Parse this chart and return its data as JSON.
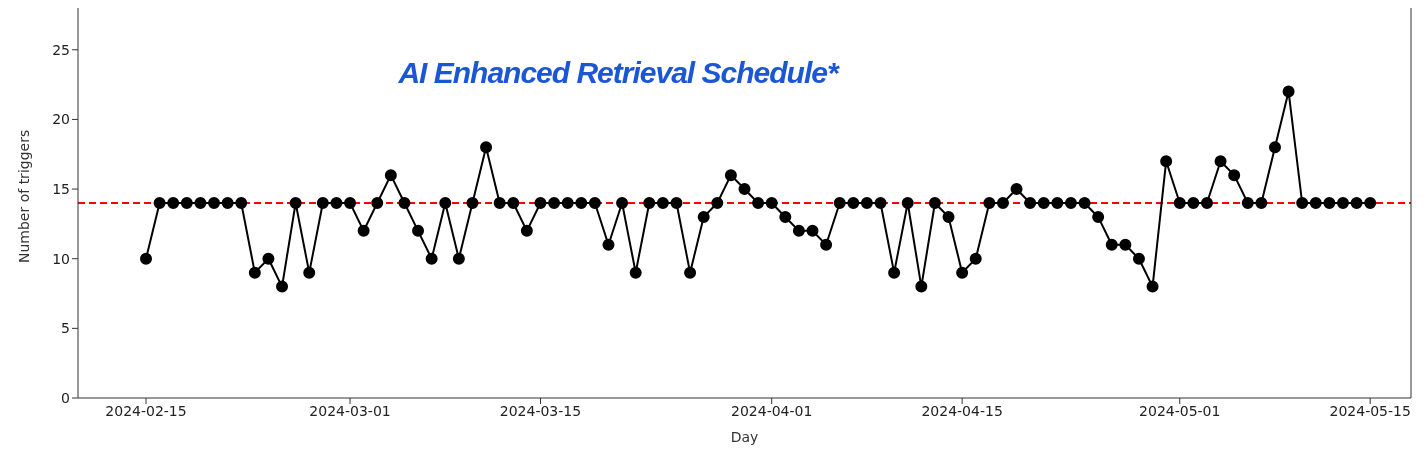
{
  "chart_data": {
    "type": "line",
    "xlabel": "Day",
    "ylabel": "Number of triggers",
    "annotations": [
      "AI Enhanced Retrieval Schedule*"
    ],
    "x": [
      "2024-02-15",
      "2024-02-16",
      "2024-02-17",
      "2024-02-18",
      "2024-02-19",
      "2024-02-20",
      "2024-02-21",
      "2024-02-22",
      "2024-02-23",
      "2024-02-24",
      "2024-02-25",
      "2024-02-26",
      "2024-02-27",
      "2024-02-28",
      "2024-02-29",
      "2024-03-01",
      "2024-03-02",
      "2024-03-03",
      "2024-03-04",
      "2024-03-05",
      "2024-03-06",
      "2024-03-07",
      "2024-03-08",
      "2024-03-09",
      "2024-03-10",
      "2024-03-11",
      "2024-03-12",
      "2024-03-13",
      "2024-03-14",
      "2024-03-15",
      "2024-03-16",
      "2024-03-17",
      "2024-03-18",
      "2024-03-19",
      "2024-03-20",
      "2024-03-21",
      "2024-03-22",
      "2024-03-23",
      "2024-03-24",
      "2024-03-25",
      "2024-03-26",
      "2024-03-27",
      "2024-03-28",
      "2024-03-29",
      "2024-03-30",
      "2024-03-31",
      "2024-04-01",
      "2024-04-02",
      "2024-04-03",
      "2024-04-04",
      "2024-04-05",
      "2024-04-06",
      "2024-04-07",
      "2024-04-08",
      "2024-04-09",
      "2024-04-10",
      "2024-04-11",
      "2024-04-12",
      "2024-04-13",
      "2024-04-14",
      "2024-04-15",
      "2024-04-16",
      "2024-04-17",
      "2024-04-18",
      "2024-04-19",
      "2024-04-20",
      "2024-04-21",
      "2024-04-22",
      "2024-04-23",
      "2024-04-24",
      "2024-04-25",
      "2024-04-26",
      "2024-04-27",
      "2024-04-28",
      "2024-04-29",
      "2024-04-30",
      "2024-05-01",
      "2024-05-02",
      "2024-05-03",
      "2024-05-04",
      "2024-05-05",
      "2024-05-06",
      "2024-05-07",
      "2024-05-08",
      "2024-05-09",
      "2024-05-10",
      "2024-05-11",
      "2024-05-12",
      "2024-05-13",
      "2024-05-14",
      "2024-05-15"
    ],
    "series": [
      {
        "color": "#000000",
        "values": [
          10,
          14,
          14,
          14,
          14,
          14,
          14,
          14,
          9,
          10,
          8,
          14,
          9,
          14,
          14,
          14,
          12,
          14,
          16,
          14,
          12,
          10,
          14,
          10,
          14,
          18,
          14,
          14,
          12,
          14,
          14,
          14,
          14,
          14,
          11,
          14,
          9,
          14,
          14,
          14,
          9,
          13,
          14,
          16,
          15,
          14,
          14,
          13,
          12,
          12,
          11,
          14,
          14,
          14,
          14,
          9,
          14,
          8,
          14,
          13,
          9,
          10,
          14,
          14,
          15,
          14,
          14,
          14,
          14,
          14,
          13,
          11,
          11,
          10,
          8,
          17,
          14,
          14,
          14,
          17,
          16,
          14,
          14,
          18,
          22,
          14,
          14,
          14,
          14,
          14,
          14
        ]
      }
    ],
    "xlim": [
      "2024-02-10",
      "2024-05-18"
    ],
    "xticks": [
      "2024-02-15",
      "2024-03-01",
      "2024-03-15",
      "2024-04-01",
      "2024-04-15",
      "2024-05-01",
      "2024-05-15"
    ],
    "ylim": [
      0,
      28
    ],
    "yticks": [
      0,
      5,
      10,
      15,
      20,
      25
    ],
    "ref_lines": [
      {
        "axis": "y",
        "value": 14,
        "color": "#ff0000",
        "line_style": "dashed"
      }
    ],
    "marker": "circle",
    "line_style": "solid",
    "grid": false,
    "legend": false
  }
}
